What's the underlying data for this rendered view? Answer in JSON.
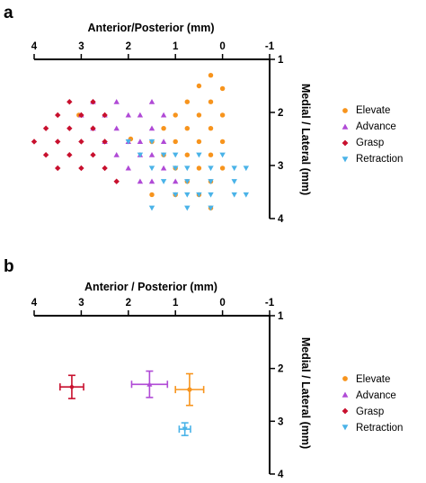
{
  "colors": {
    "Elevate": "#f7941d",
    "Advance": "#b04ad6",
    "Grasp": "#c8102e",
    "Retraction": "#4ab3e8",
    "axis": "#000000"
  },
  "chart_data": [
    {
      "panel": "a",
      "type": "scatter",
      "xlabel": "Anterior/Posterior (mm)",
      "ylabel": "Medial / Lateral (mm)",
      "xlim": [
        4,
        -1
      ],
      "ylim": [
        1,
        4
      ],
      "x_ticks": [
        "4",
        "3",
        "2",
        "1",
        "0",
        "-1"
      ],
      "y_ticks": [
        "1",
        "2",
        "3",
        "4"
      ],
      "x_tick_values": [
        4,
        3,
        2,
        1,
        0,
        -1
      ],
      "y_tick_values": [
        1,
        2,
        3,
        4
      ],
      "legend_position": "right",
      "series": [
        {
          "name": "Elevate",
          "marker": "circle",
          "points": [
            [
              0.25,
              1.3
            ],
            [
              0.5,
              1.5
            ],
            [
              0.0,
              1.55
            ],
            [
              0.75,
              1.8
            ],
            [
              0.25,
              1.8
            ],
            [
              1.0,
              2.05
            ],
            [
              0.5,
              2.05
            ],
            [
              0.0,
              2.05
            ],
            [
              1.25,
              2.3
            ],
            [
              0.75,
              2.3
            ],
            [
              0.25,
              2.3
            ],
            [
              1.5,
              2.55
            ],
            [
              1.0,
              2.55
            ],
            [
              0.5,
              2.55
            ],
            [
              0.0,
              2.55
            ],
            [
              1.25,
              2.8
            ],
            [
              0.75,
              2.8
            ],
            [
              0.25,
              2.8
            ],
            [
              1.0,
              3.05
            ],
            [
              0.5,
              3.05
            ],
            [
              0.0,
              3.05
            ],
            [
              0.75,
              3.3
            ],
            [
              0.25,
              3.3
            ],
            [
              1.5,
              3.55
            ],
            [
              1.0,
              3.55
            ],
            [
              0.5,
              3.55
            ],
            [
              0.25,
              3.8
            ],
            [
              3.05,
              2.05
            ],
            [
              1.95,
              2.5
            ]
          ]
        },
        {
          "name": "Advance",
          "marker": "triangle-up",
          "points": [
            [
              2.75,
              1.8
            ],
            [
              2.25,
              1.8
            ],
            [
              1.5,
              1.8
            ],
            [
              3.0,
              2.05
            ],
            [
              2.5,
              2.05
            ],
            [
              2.0,
              2.05
            ],
            [
              1.75,
              2.05
            ],
            [
              1.25,
              2.05
            ],
            [
              2.75,
              2.3
            ],
            [
              2.25,
              2.3
            ],
            [
              1.5,
              2.3
            ],
            [
              2.5,
              2.55
            ],
            [
              2.0,
              2.55
            ],
            [
              1.75,
              2.55
            ],
            [
              1.25,
              2.55
            ],
            [
              2.25,
              2.8
            ],
            [
              1.75,
              2.8
            ],
            [
              1.5,
              2.8
            ],
            [
              2.0,
              3.05
            ],
            [
              1.25,
              3.05
            ],
            [
              1.75,
              3.3
            ],
            [
              1.5,
              3.3
            ],
            [
              1.0,
              3.3
            ]
          ]
        },
        {
          "name": "Grasp",
          "marker": "diamond",
          "points": [
            [
              3.25,
              1.8
            ],
            [
              2.75,
              1.8
            ],
            [
              3.5,
              2.05
            ],
            [
              3.0,
              2.05
            ],
            [
              2.5,
              2.05
            ],
            [
              3.75,
              2.3
            ],
            [
              3.25,
              2.3
            ],
            [
              2.75,
              2.3
            ],
            [
              4.0,
              2.55
            ],
            [
              3.5,
              2.55
            ],
            [
              3.0,
              2.55
            ],
            [
              2.5,
              2.55
            ],
            [
              3.75,
              2.8
            ],
            [
              3.25,
              2.8
            ],
            [
              2.75,
              2.8
            ],
            [
              3.5,
              3.05
            ],
            [
              3.0,
              3.05
            ],
            [
              2.5,
              3.05
            ],
            [
              2.25,
              3.3
            ]
          ]
        },
        {
          "name": "Retraction",
          "marker": "triangle-down",
          "points": [
            [
              2.0,
              2.55
            ],
            [
              1.5,
              2.55
            ],
            [
              1.75,
              2.8
            ],
            [
              1.25,
              2.8
            ],
            [
              1.0,
              2.8
            ],
            [
              0.5,
              2.8
            ],
            [
              0.0,
              2.8
            ],
            [
              1.5,
              3.05
            ],
            [
              1.0,
              3.05
            ],
            [
              0.75,
              3.05
            ],
            [
              0.25,
              3.05
            ],
            [
              -0.25,
              3.05
            ],
            [
              -0.5,
              3.05
            ],
            [
              1.25,
              3.3
            ],
            [
              0.75,
              3.3
            ],
            [
              0.25,
              3.3
            ],
            [
              -0.25,
              3.3
            ],
            [
              1.0,
              3.55
            ],
            [
              0.75,
              3.55
            ],
            [
              0.5,
              3.55
            ],
            [
              0.25,
              3.55
            ],
            [
              -0.25,
              3.55
            ],
            [
              -0.5,
              3.55
            ],
            [
              1.5,
              3.8
            ],
            [
              0.75,
              3.8
            ],
            [
              0.25,
              3.8
            ]
          ]
        }
      ]
    },
    {
      "panel": "b",
      "type": "scatter",
      "xlabel": "Anterior / Posterior (mm)",
      "ylabel": "Medial / Lateral (mm)",
      "xlim": [
        4,
        -1
      ],
      "ylim": [
        1,
        4
      ],
      "x_ticks": [
        "4",
        "3",
        "2",
        "1",
        "0",
        "-1"
      ],
      "y_ticks": [
        "1",
        "2",
        "3",
        "4"
      ],
      "x_tick_values": [
        4,
        3,
        2,
        1,
        0,
        -1
      ],
      "y_tick_values": [
        1,
        2,
        3,
        4
      ],
      "legend_position": "right",
      "series": [
        {
          "name": "Elevate",
          "marker": "circle",
          "x": 0.7,
          "y": 2.4,
          "x_err": 0.3,
          "y_err": 0.3
        },
        {
          "name": "Advance",
          "marker": "triangle-up",
          "x": 1.55,
          "y": 2.3,
          "x_err": 0.38,
          "y_err": 0.25
        },
        {
          "name": "Grasp",
          "marker": "diamond",
          "x": 3.2,
          "y": 2.35,
          "x_err": 0.25,
          "y_err": 0.22
        },
        {
          "name": "Retraction",
          "marker": "triangle-down",
          "x": 0.8,
          "y": 3.15,
          "x_err": 0.12,
          "y_err": 0.12
        }
      ]
    }
  ]
}
